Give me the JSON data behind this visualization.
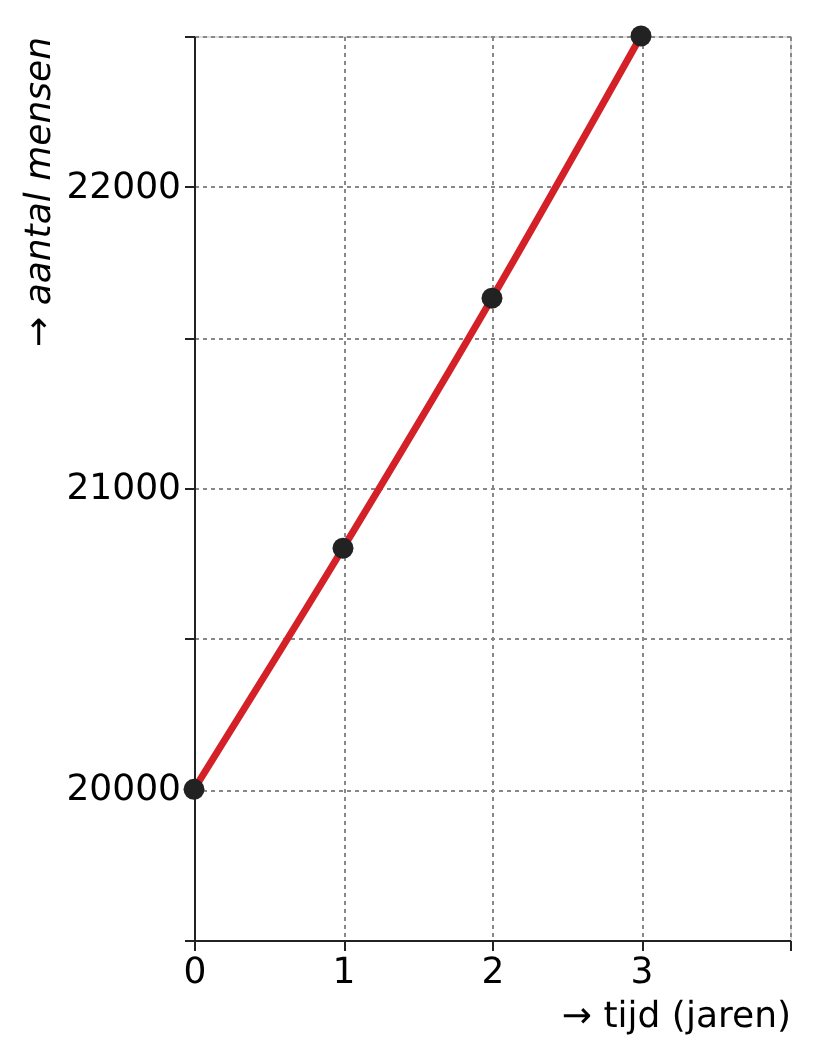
{
  "chart_data": {
    "type": "line",
    "xlabel": "→ tijd (jaren)",
    "ylabel": "→ aantal mensen",
    "x": [
      0,
      1,
      2,
      3
    ],
    "series": [
      {
        "color": "#d42027",
        "values": [
          20000,
          20800,
          21630,
          22500
        ]
      }
    ],
    "xlim": [
      0,
      4
    ],
    "xticks": [
      0,
      1,
      2,
      3,
      {
        "value": 4,
        "label": null
      }
    ],
    "ylim": [
      19500,
      22500
    ],
    "yticks": [
      {
        "value": 19500,
        "label": null
      },
      20000,
      {
        "value": 20500,
        "label": null
      },
      21000,
      {
        "value": 21500,
        "label": null
      },
      22000,
      {
        "value": 22500,
        "label": null
      }
    ],
    "grid": true,
    "marker": "circle",
    "line_style": "solid"
  }
}
